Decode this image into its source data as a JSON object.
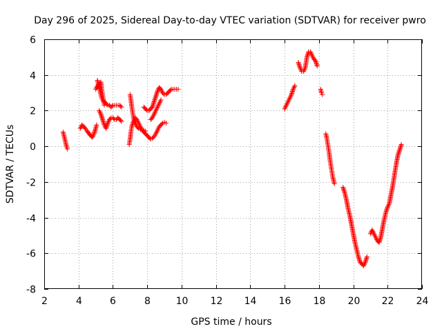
{
  "chart_data": {
    "type": "scatter",
    "title": "Day 296 of 2025, Sidereal Day-to-day VTEC variation (SDTVAR) for receiver pwro",
    "xlabel": "GPS time / hours",
    "ylabel": "SDTVAR / TECUs",
    "xlim": [
      2,
      24
    ],
    "ylim": [
      -8,
      6
    ],
    "xticks": [
      2,
      4,
      6,
      8,
      10,
      12,
      14,
      16,
      18,
      20,
      22,
      24
    ],
    "yticks": [
      -8,
      -6,
      -4,
      -2,
      0,
      2,
      4,
      6
    ],
    "grid": true,
    "marker": "+",
    "color": "#ff0000",
    "series": [
      {
        "name": "seg1",
        "points": [
          [
            3.1,
            0.8
          ],
          [
            3.15,
            0.6
          ],
          [
            3.2,
            0.4
          ],
          [
            3.25,
            0.2
          ],
          [
            3.3,
            0.0
          ],
          [
            3.35,
            -0.15
          ]
        ]
      },
      {
        "name": "seg2",
        "points": [
          [
            4.1,
            1.0
          ],
          [
            4.2,
            1.2
          ],
          [
            4.3,
            1.1
          ],
          [
            4.4,
            1.0
          ],
          [
            4.5,
            0.85
          ],
          [
            4.7,
            0.6
          ],
          [
            4.8,
            0.5
          ],
          [
            4.9,
            0.7
          ],
          [
            5.0,
            1.0
          ],
          [
            5.05,
            1.2
          ]
        ]
      },
      {
        "name": "seg3",
        "points": [
          [
            5.1,
            3.7
          ],
          [
            5.15,
            3.5
          ],
          [
            5.2,
            3.3
          ],
          [
            5.25,
            3.1
          ],
          [
            5.3,
            2.9
          ],
          [
            5.35,
            2.7
          ],
          [
            5.4,
            2.6
          ],
          [
            5.5,
            2.5
          ],
          [
            5.6,
            2.4
          ],
          [
            5.7,
            2.3
          ],
          [
            5.8,
            2.3
          ],
          [
            5.9,
            2.2
          ],
          [
            6.0,
            2.3
          ],
          [
            6.1,
            2.3
          ],
          [
            6.2,
            2.3
          ],
          [
            6.3,
            2.3
          ],
          [
            6.4,
            2.3
          ],
          [
            6.5,
            2.2
          ]
        ]
      },
      {
        "name": "seg4",
        "points": [
          [
            5.2,
            2.0
          ],
          [
            5.3,
            1.8
          ],
          [
            5.4,
            1.5
          ],
          [
            5.5,
            1.2
          ],
          [
            5.6,
            1.0
          ],
          [
            5.7,
            1.3
          ],
          [
            5.8,
            1.5
          ],
          [
            5.9,
            1.6
          ],
          [
            6.0,
            1.6
          ],
          [
            6.1,
            1.5
          ],
          [
            6.2,
            1.5
          ],
          [
            6.3,
            1.6
          ],
          [
            6.4,
            1.5
          ],
          [
            6.5,
            1.4
          ]
        ]
      },
      {
        "name": "seg5",
        "points": [
          [
            5.0,
            3.2
          ],
          [
            5.1,
            3.4
          ],
          [
            5.2,
            3.5
          ],
          [
            5.3,
            3.6
          ],
          [
            5.35,
            3.2
          ],
          [
            5.4,
            2.9
          ],
          [
            5.45,
            2.6
          ],
          [
            5.5,
            2.3
          ]
        ]
      },
      {
        "name": "seg6",
        "points": [
          [
            6.95,
            0.1
          ],
          [
            7.0,
            0.4
          ],
          [
            7.05,
            0.8
          ],
          [
            7.1,
            1.1
          ],
          [
            7.2,
            1.4
          ],
          [
            7.3,
            1.6
          ],
          [
            7.4,
            1.5
          ],
          [
            7.5,
            1.3
          ],
          [
            7.6,
            1.1
          ],
          [
            7.7,
            0.9
          ],
          [
            7.8,
            0.8
          ],
          [
            7.9,
            0.7
          ],
          [
            8.0,
            0.6
          ],
          [
            8.1,
            0.5
          ],
          [
            8.2,
            0.4
          ],
          [
            8.3,
            0.45
          ],
          [
            8.4,
            0.55
          ],
          [
            8.5,
            0.7
          ],
          [
            8.6,
            0.9
          ],
          [
            8.7,
            1.1
          ],
          [
            8.8,
            1.2
          ],
          [
            8.9,
            1.3
          ],
          [
            9.0,
            1.35
          ],
          [
            9.1,
            1.3
          ]
        ]
      },
      {
        "name": "seg7",
        "points": [
          [
            7.0,
            2.9
          ],
          [
            7.05,
            2.6
          ],
          [
            7.1,
            2.2
          ],
          [
            7.15,
            1.9
          ],
          [
            7.2,
            1.6
          ],
          [
            7.3,
            1.3
          ],
          [
            7.4,
            1.1
          ],
          [
            7.5,
            1.0
          ],
          [
            7.6,
            0.95
          ],
          [
            7.7,
            0.95
          ],
          [
            7.8,
            0.9
          ],
          [
            7.9,
            0.85
          ]
        ]
      },
      {
        "name": "seg8",
        "points": [
          [
            7.8,
            2.2
          ],
          [
            7.9,
            2.1
          ],
          [
            8.0,
            2.0
          ],
          [
            8.1,
            2.0
          ],
          [
            8.2,
            2.1
          ],
          [
            8.3,
            2.2
          ],
          [
            8.4,
            2.5
          ],
          [
            8.5,
            2.8
          ],
          [
            8.6,
            3.1
          ],
          [
            8.7,
            3.3
          ],
          [
            8.8,
            3.2
          ],
          [
            8.9,
            3.0
          ],
          [
            9.0,
            2.9
          ],
          [
            9.1,
            2.9
          ],
          [
            9.2,
            3.0
          ],
          [
            9.3,
            3.1
          ],
          [
            9.4,
            3.2
          ],
          [
            9.5,
            3.2
          ],
          [
            9.6,
            3.2
          ],
          [
            9.7,
            3.2
          ],
          [
            9.8,
            3.2
          ]
        ]
      },
      {
        "name": "seg9",
        "points": [
          [
            8.2,
            1.5
          ],
          [
            8.3,
            1.6
          ],
          [
            8.4,
            1.8
          ],
          [
            8.5,
            2.0
          ],
          [
            8.6,
            2.2
          ],
          [
            8.7,
            2.4
          ],
          [
            8.8,
            2.6
          ]
        ]
      },
      {
        "name": "seg10",
        "points": [
          [
            16.0,
            2.1
          ],
          [
            16.1,
            2.3
          ],
          [
            16.2,
            2.5
          ],
          [
            16.3,
            2.7
          ],
          [
            16.4,
            2.9
          ],
          [
            16.5,
            3.2
          ],
          [
            16.6,
            3.4
          ]
        ]
      },
      {
        "name": "seg11",
        "points": [
          [
            16.8,
            4.7
          ],
          [
            16.9,
            4.4
          ],
          [
            17.0,
            4.2
          ],
          [
            17.1,
            4.2
          ],
          [
            17.2,
            4.4
          ],
          [
            17.3,
            5.0
          ],
          [
            17.4,
            5.3
          ],
          [
            17.5,
            5.3
          ],
          [
            17.6,
            5.1
          ],
          [
            17.7,
            4.9
          ],
          [
            17.8,
            4.8
          ],
          [
            17.9,
            4.5
          ]
        ]
      },
      {
        "name": "seg12",
        "points": [
          [
            18.1,
            3.2
          ],
          [
            18.15,
            3.0
          ],
          [
            18.2,
            2.9
          ]
        ]
      },
      {
        "name": "seg13",
        "points": [
          [
            18.4,
            0.7
          ],
          [
            18.45,
            0.5
          ],
          [
            18.5,
            0.2
          ],
          [
            18.55,
            -0.1
          ],
          [
            18.6,
            -0.4
          ],
          [
            18.65,
            -0.8
          ],
          [
            18.7,
            -1.1
          ],
          [
            18.75,
            -1.4
          ],
          [
            18.8,
            -1.7
          ],
          [
            18.85,
            -1.9
          ],
          [
            18.9,
            -2.1
          ]
        ]
      },
      {
        "name": "seg14",
        "points": [
          [
            19.4,
            -2.3
          ],
          [
            19.5,
            -2.6
          ],
          [
            19.6,
            -3.0
          ],
          [
            19.7,
            -3.5
          ],
          [
            19.8,
            -3.9
          ],
          [
            19.9,
            -4.4
          ],
          [
            20.0,
            -4.9
          ],
          [
            20.1,
            -5.4
          ],
          [
            20.2,
            -5.8
          ],
          [
            20.3,
            -6.2
          ],
          [
            20.4,
            -6.5
          ],
          [
            20.5,
            -6.6
          ],
          [
            20.6,
            -6.7
          ],
          [
            20.7,
            -6.5
          ],
          [
            20.8,
            -6.2
          ]
        ]
      },
      {
        "name": "seg15",
        "points": [
          [
            21.0,
            -4.9
          ],
          [
            21.1,
            -4.7
          ],
          [
            21.2,
            -4.9
          ],
          [
            21.3,
            -5.1
          ],
          [
            21.4,
            -5.3
          ],
          [
            21.5,
            -5.4
          ],
          [
            21.6,
            -5.1
          ],
          [
            21.7,
            -4.6
          ],
          [
            21.8,
            -4.1
          ],
          [
            21.9,
            -3.7
          ],
          [
            22.0,
            -3.4
          ],
          [
            22.1,
            -3.2
          ],
          [
            22.2,
            -2.7
          ],
          [
            22.3,
            -2.2
          ],
          [
            22.4,
            -1.6
          ],
          [
            22.5,
            -1.0
          ],
          [
            22.6,
            -0.5
          ],
          [
            22.8,
            0.1
          ]
        ]
      }
    ]
  }
}
